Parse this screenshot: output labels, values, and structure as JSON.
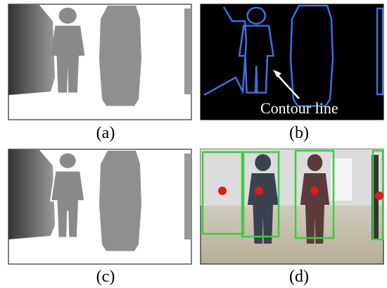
{
  "panels": [
    {
      "label": "(a)"
    },
    {
      "label": "(b)",
      "annotation": "Contour line"
    },
    {
      "label": "(c)"
    },
    {
      "label": "(d)"
    }
  ]
}
